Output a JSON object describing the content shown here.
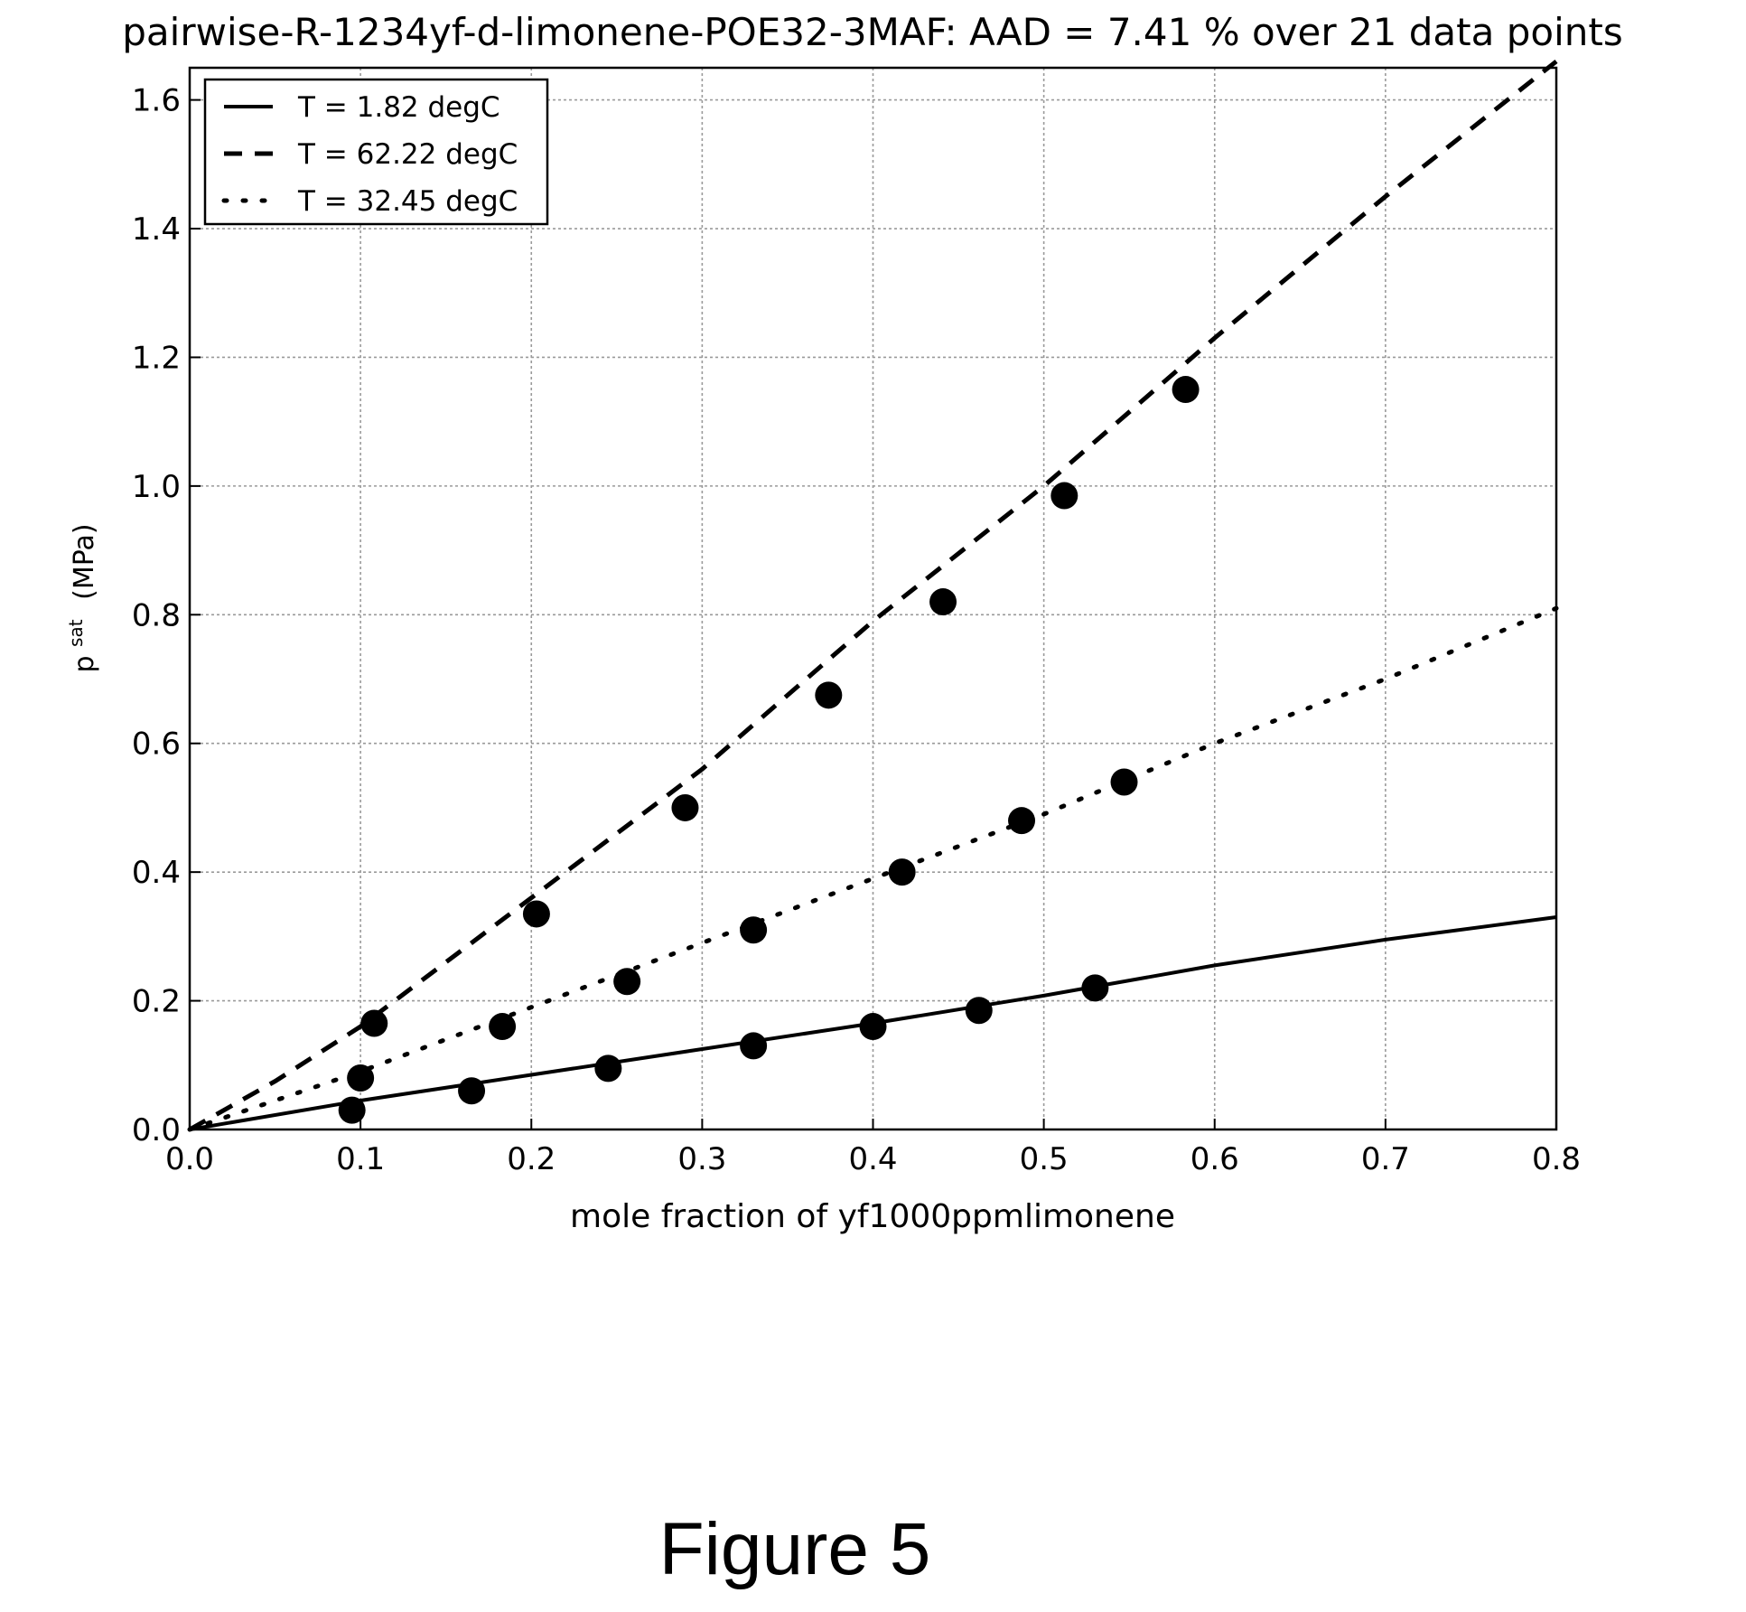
{
  "figure_caption": "Figure 5",
  "chart_data": {
    "type": "scatter",
    "title": "pairwise-R-1234yf-d-limonene-POE32-3MAF: AAD = 7.41 % over 21 data points",
    "xlabel": "mole fraction of yf1000ppmlimonene",
    "ylabel": {
      "base": "p",
      "superscript": "sat",
      "unit": "(MPa)"
    },
    "xlim": [
      0.0,
      0.8
    ],
    "ylim": [
      0.0,
      1.65
    ],
    "x_ticks": [
      "0.0",
      "0.1",
      "0.2",
      "0.3",
      "0.4",
      "0.5",
      "0.6",
      "0.7",
      "0.8"
    ],
    "y_ticks": [
      "0.0",
      "0.2",
      "0.4",
      "0.6",
      "0.8",
      "1.0",
      "1.2",
      "1.4",
      "1.6"
    ],
    "x_tick_values": [
      0.0,
      0.1,
      0.2,
      0.3,
      0.4,
      0.5,
      0.6,
      0.7,
      0.8
    ],
    "y_tick_values": [
      0.0,
      0.2,
      0.4,
      0.6,
      0.8,
      1.0,
      1.2,
      1.4,
      1.6
    ],
    "grid": true,
    "legend_position": "top-left",
    "model_curves": [
      {
        "name": "T = 1.82 degC",
        "style": "solid",
        "x": [
          0.0,
          0.1,
          0.2,
          0.3,
          0.4,
          0.5,
          0.6,
          0.7,
          0.8
        ],
        "y": [
          0.0,
          0.045,
          0.085,
          0.125,
          0.165,
          0.208,
          0.255,
          0.295,
          0.33
        ]
      },
      {
        "name": "T = 62.22 degC",
        "style": "dashed",
        "x": [
          0.0,
          0.05,
          0.1,
          0.2,
          0.3,
          0.4,
          0.5,
          0.6,
          0.7,
          0.8
        ],
        "y": [
          0.0,
          0.075,
          0.16,
          0.36,
          0.56,
          0.79,
          1.0,
          1.23,
          1.45,
          1.66
        ]
      },
      {
        "name": "T = 32.45 degC",
        "style": "dotted",
        "x": [
          0.0,
          0.1,
          0.2,
          0.3,
          0.4,
          0.5,
          0.6,
          0.7,
          0.8
        ],
        "y": [
          0.0,
          0.09,
          0.19,
          0.29,
          0.39,
          0.49,
          0.6,
          0.7,
          0.81
        ]
      }
    ],
    "data_points": {
      "marker": "filled-circle",
      "x": [
        0.095,
        0.165,
        0.245,
        0.33,
        0.4,
        0.462,
        0.53,
        0.1,
        0.183,
        0.256,
        0.33,
        0.417,
        0.487,
        0.547,
        0.108,
        0.203,
        0.29,
        0.374,
        0.441,
        0.512,
        0.583
      ],
      "y": [
        0.03,
        0.06,
        0.095,
        0.13,
        0.16,
        0.185,
        0.22,
        0.08,
        0.16,
        0.23,
        0.31,
        0.4,
        0.48,
        0.54,
        0.165,
        0.335,
        0.5,
        0.675,
        0.82,
        0.985,
        1.15
      ]
    },
    "colors": {
      "axes": "#000000",
      "grid": "#9a9a9a",
      "markers": "#000000",
      "background": "#ffffff"
    }
  }
}
